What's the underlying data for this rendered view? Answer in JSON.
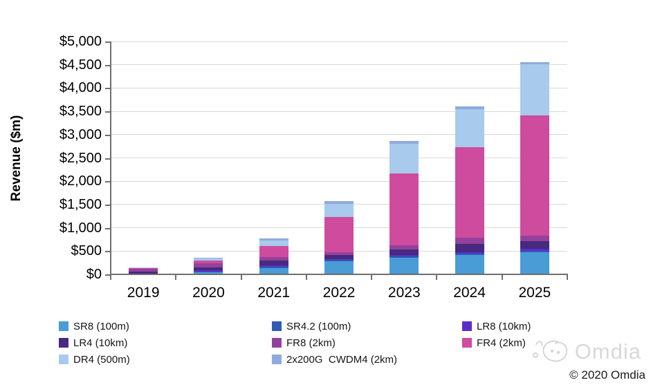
{
  "chart_data": {
    "type": "bar",
    "stacked": true,
    "title": "",
    "ylabel": "Revenue ($m)",
    "xlabel": "",
    "ylim": [
      0,
      5000
    ],
    "ytick_step": 500,
    "ytick_labels": [
      "$0",
      "$500",
      "$1,000",
      "$1,500",
      "$2,000",
      "$2,500",
      "$3,000",
      "$3,500",
      "$4,000",
      "$4,500",
      "$5,000"
    ],
    "grid": true,
    "legend_position": "bottom",
    "categories": [
      "2019",
      "2020",
      "2021",
      "2022",
      "2023",
      "2024",
      "2025"
    ],
    "series": [
      {
        "name": "SR8 (100m)",
        "color": "#4a9cd6",
        "values": [
          5,
          45,
          135,
          280,
          360,
          410,
          470
        ]
      },
      {
        "name": "SR4.2 (100m)",
        "color": "#2f5cb4",
        "values": [
          5,
          20,
          25,
          25,
          30,
          35,
          40
        ]
      },
      {
        "name": "LR8 (10km)",
        "color": "#5b2ec8",
        "values": [
          10,
          20,
          30,
          25,
          30,
          35,
          40
        ]
      },
      {
        "name": "LR4 (10km)",
        "color": "#47297f",
        "values": [
          35,
          70,
          110,
          90,
          120,
          180,
          160
        ]
      },
      {
        "name": "FR8 (2km)",
        "color": "#94419b",
        "values": [
          70,
          80,
          65,
          60,
          90,
          120,
          120
        ]
      },
      {
        "name": "FR4 (2km)",
        "color": "#ce4b9e",
        "values": [
          15,
          55,
          250,
          755,
          1530,
          1950,
          2580
        ]
      },
      {
        "name": "DR4 (500m)",
        "color": "#a8caec",
        "values": [
          10,
          45,
          115,
          280,
          650,
          810,
          1100
        ]
      },
      {
        "name": "2x200G  CWDM4 (2km)",
        "color": "#8faadc",
        "values": [
          5,
          15,
          40,
          60,
          60,
          60,
          40
        ]
      }
    ],
    "totals": [
      155,
      350,
      770,
      1575,
      2870,
      3600,
      4550
    ]
  },
  "legend": {
    "columns": [
      [
        0,
        3,
        6
      ],
      [
        1,
        4,
        7
      ],
      [
        2,
        5
      ]
    ],
    "column_lefts": [
      85,
      393,
      668
    ]
  },
  "footer": {
    "watermark": "Omdia",
    "copyright": "© 2020 Omdia"
  },
  "colors": {
    "gridline": "#d9d9d9",
    "axis": "#6e6e6e",
    "text": "#000000",
    "watermark": "#d8d8d8"
  }
}
